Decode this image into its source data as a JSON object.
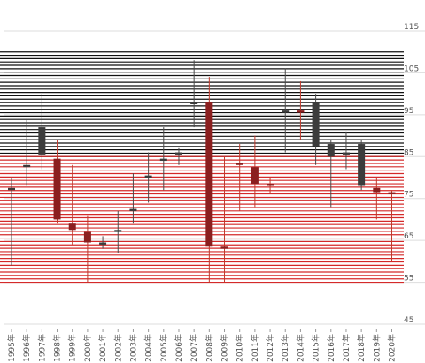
{
  "chart_data": {
    "type": "candlestick",
    "title": "",
    "xlabel": "",
    "ylabel": "",
    "ylim": [
      43,
      117
    ],
    "y_ticks": [
      45,
      55,
      65,
      75,
      85,
      95,
      105,
      115
    ],
    "y_tick_labels": [
      "45",
      "55",
      "65",
      "75",
      "85",
      "95",
      "105",
      "115"
    ],
    "categories": [
      "1995年",
      "1996年",
      "1997年",
      "1998年",
      "1999年",
      "2000年",
      "2001年",
      "2002年",
      "2003年",
      "2004年",
      "2005年",
      "2006年",
      "2007年",
      "2008年",
      "2009年",
      "2010年",
      "2011年",
      "2012年",
      "2013年",
      "2014年",
      "2015年",
      "2016年",
      "2017年",
      "2018年",
      "2019年",
      "2020年"
    ],
    "ohlc": [
      {
        "open": 77.0,
        "close": 77.5,
        "low": 59,
        "high": 80,
        "trend": "up"
      },
      {
        "open": 82.5,
        "close": 83.0,
        "low": 78,
        "high": 94,
        "trend": "up"
      },
      {
        "open": 85.5,
        "close": 92.0,
        "low": 82,
        "high": 100,
        "trend": "up"
      },
      {
        "open": 84.5,
        "close": 70.0,
        "low": 69,
        "high": 89,
        "trend": "down"
      },
      {
        "open": 69.0,
        "close": 67.5,
        "low": 64,
        "high": 83,
        "trend": "down"
      },
      {
        "open": 67.0,
        "close": 64.5,
        "low": 55,
        "high": 71,
        "trend": "down"
      },
      {
        "open": 64.0,
        "close": 64.5,
        "low": 63,
        "high": 66,
        "trend": "up"
      },
      {
        "open": 67.0,
        "close": 67.5,
        "low": 62,
        "high": 72,
        "trend": "up"
      },
      {
        "open": 72.0,
        "close": 72.5,
        "low": 69,
        "high": 81,
        "trend": "up"
      },
      {
        "open": 80.0,
        "close": 80.5,
        "low": 74,
        "high": 86,
        "trend": "up"
      },
      {
        "open": 84.0,
        "close": 84.5,
        "low": 77,
        "high": 92,
        "trend": "up"
      },
      {
        "open": 85.5,
        "close": 86.0,
        "low": 83,
        "high": 87,
        "trend": "up"
      },
      {
        "open": 97.5,
        "close": 98.0,
        "low": 92,
        "high": 108,
        "trend": "up"
      },
      {
        "open": 98.0,
        "close": 63.5,
        "low": 55,
        "high": 104,
        "trend": "down"
      },
      {
        "open": 63.5,
        "close": 63.0,
        "low": 55,
        "high": 85,
        "trend": "down"
      },
      {
        "open": 83.5,
        "close": 83.0,
        "low": 72,
        "high": 88,
        "trend": "down"
      },
      {
        "open": 82.5,
        "close": 78.5,
        "low": 73,
        "high": 90,
        "trend": "down"
      },
      {
        "open": 78.5,
        "close": 78.0,
        "low": 76,
        "high": 80,
        "trend": "down"
      },
      {
        "open": 95.5,
        "close": 96.0,
        "low": 86,
        "high": 106,
        "trend": "up"
      },
      {
        "open": 96.0,
        "close": 95.5,
        "low": 89,
        "high": 103,
        "trend": "down"
      },
      {
        "open": 87.5,
        "close": 98.0,
        "low": 83,
        "high": 100,
        "trend": "up"
      },
      {
        "open": 85.0,
        "close": 88.0,
        "low": 73,
        "high": 89,
        "trend": "up"
      },
      {
        "open": 85.5,
        "close": 86.0,
        "low": 82,
        "high": 91,
        "trend": "up"
      },
      {
        "open": 78.0,
        "close": 88.0,
        "low": 77,
        "high": 89,
        "trend": "up"
      },
      {
        "open": 77.5,
        "close": 76.5,
        "low": 70,
        "high": 80,
        "trend": "down"
      },
      {
        "open": 76.5,
        "close": 76.0,
        "low": 60,
        "high": 77,
        "trend": "down"
      }
    ],
    "bands": [
      {
        "from": 85,
        "to": 110,
        "stripes": 32,
        "color": "#111111"
      },
      {
        "from": 55,
        "to": 85,
        "stripes": 38,
        "color": "#d42a2a"
      }
    ],
    "colors": {
      "up": "#3c3c3c",
      "down": "#8b1f1f",
      "wick_up": "#4a4a4a",
      "wick_down": "#c0392b",
      "grid": "#dddddd",
      "axis_text": "#555555"
    },
    "grid": true,
    "legend": "none"
  }
}
